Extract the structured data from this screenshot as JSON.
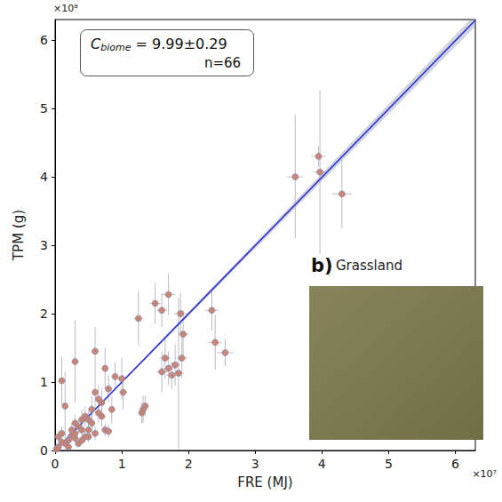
{
  "chart_data": {
    "type": "scatter",
    "x_label": "FRE (MJ)",
    "y_label": "TPM (g)",
    "x_offset": "×10⁷",
    "y_offset": "×10⁸",
    "annotation": {
      "symbol": "C",
      "subscript": "biome",
      "text": " = 9.99±0.29",
      "n": "n=66"
    },
    "inset_label": "b)",
    "inset_title": "Grassland",
    "color": "#c8806e",
    "marker": "circle",
    "grid": false,
    "xlim": [
      0,
      6.3
    ],
    "ylim": [
      0,
      6.3
    ],
    "xticks": [
      0,
      1,
      2,
      3,
      4,
      5,
      6
    ],
    "yticks": [
      0,
      1,
      2,
      3,
      4,
      5,
      6
    ],
    "x": [
      3.6,
      3.95,
      3.97,
      4.3,
      2.35,
      2.4,
      2.55,
      1.88,
      1.92,
      1.7,
      1.5,
      1.6,
      1.25,
      1.65,
      1.7,
      1.75,
      1.8,
      1.85,
      1.6,
      1.0,
      1.02,
      1.35,
      1.32,
      1.3,
      0.9,
      0.75,
      0.8,
      0.6,
      0.3,
      0.1,
      0.15,
      0.1,
      0.05,
      0.2,
      0.25,
      0.3,
      0.35,
      0.4,
      0.45,
      0.5,
      0.55,
      0.6,
      0.65,
      0.7,
      0.75,
      0.8,
      0.7,
      0.6,
      0.45,
      0.35,
      0.25,
      0.15,
      0.05,
      0.4,
      0.5,
      0.2,
      0.3,
      0.55,
      0.65,
      0.85,
      0.1,
      0.02,
      0.4,
      0.3,
      0.5,
      1.9
    ],
    "y": [
      4.0,
      4.3,
      4.07,
      3.75,
      2.05,
      1.58,
      1.43,
      2.0,
      1.7,
      2.28,
      2.15,
      2.05,
      1.93,
      1.35,
      1.2,
      1.1,
      1.25,
      1.13,
      1.15,
      1.05,
      0.85,
      0.65,
      0.6,
      0.55,
      1.08,
      1.2,
      0.9,
      1.45,
      1.3,
      1.02,
      0.65,
      0.25,
      0.05,
      0.15,
      0.3,
      0.4,
      0.35,
      0.45,
      0.5,
      0.3,
      0.6,
      0.85,
      0.75,
      0.7,
      0.3,
      0.28,
      0.5,
      0.25,
      0.2,
      0.1,
      0.22,
      0.1,
      0.2,
      0.3,
      0.45,
      0.05,
      0.18,
      0.4,
      0.55,
      0.6,
      0.12,
      0.02,
      0.15,
      0.25,
      0.2,
      1.35
    ],
    "x_err": [
      0.12,
      0.1,
      0.1,
      0.15,
      0.1,
      0.1,
      0.12,
      0.1,
      0.08,
      0.1,
      0.08,
      0.08,
      0.07,
      0.08,
      0.08,
      0.08,
      0.08,
      0.08,
      0.08,
      0.06,
      0.06,
      0.06,
      0.06,
      0.06,
      0.05,
      0.05,
      0.05,
      0.05,
      0.05,
      0.04,
      0.04,
      0.03,
      0.02,
      0.03,
      0.03,
      0.04,
      0.04,
      0.04,
      0.04,
      0.04,
      0.04,
      0.05,
      0.05,
      0.05,
      0.05,
      0.05,
      0.05,
      0.04,
      0.04,
      0.03,
      0.03,
      0.03,
      0.02,
      0.04,
      0.04,
      0.03,
      0.03,
      0.04,
      0.05,
      0.05,
      0.03,
      0.02,
      0.03,
      0.03,
      0.04,
      0.08
    ],
    "y_err": [
      0.9,
      0.15,
      1.2,
      0.5,
      0.3,
      0.4,
      0.2,
      0.3,
      0.35,
      0.3,
      0.3,
      0.25,
      0.4,
      0.3,
      0.25,
      0.2,
      0.3,
      1.1,
      0.3,
      0.3,
      0.25,
      0.15,
      0.2,
      0.15,
      0.2,
      0.3,
      0.2,
      0.35,
      0.6,
      0.35,
      0.5,
      0.1,
      0.05,
      0.08,
      0.1,
      0.12,
      0.1,
      0.15,
      0.15,
      0.1,
      0.2,
      0.25,
      0.2,
      0.2,
      0.1,
      0.1,
      0.15,
      0.1,
      0.08,
      0.05,
      0.08,
      0.05,
      0.08,
      0.1,
      0.12,
      0.03,
      0.06,
      0.12,
      0.15,
      0.2,
      0.05,
      0.02,
      0.06,
      0.08,
      0.08,
      0.3
    ],
    "fit": {
      "x": [
        0,
        6.3
      ],
      "y": [
        0,
        6.29
      ],
      "band_lower": [
        0,
        6.2
      ],
      "band_upper": [
        0,
        6.38
      ],
      "color": "#2b2bd6"
    }
  }
}
